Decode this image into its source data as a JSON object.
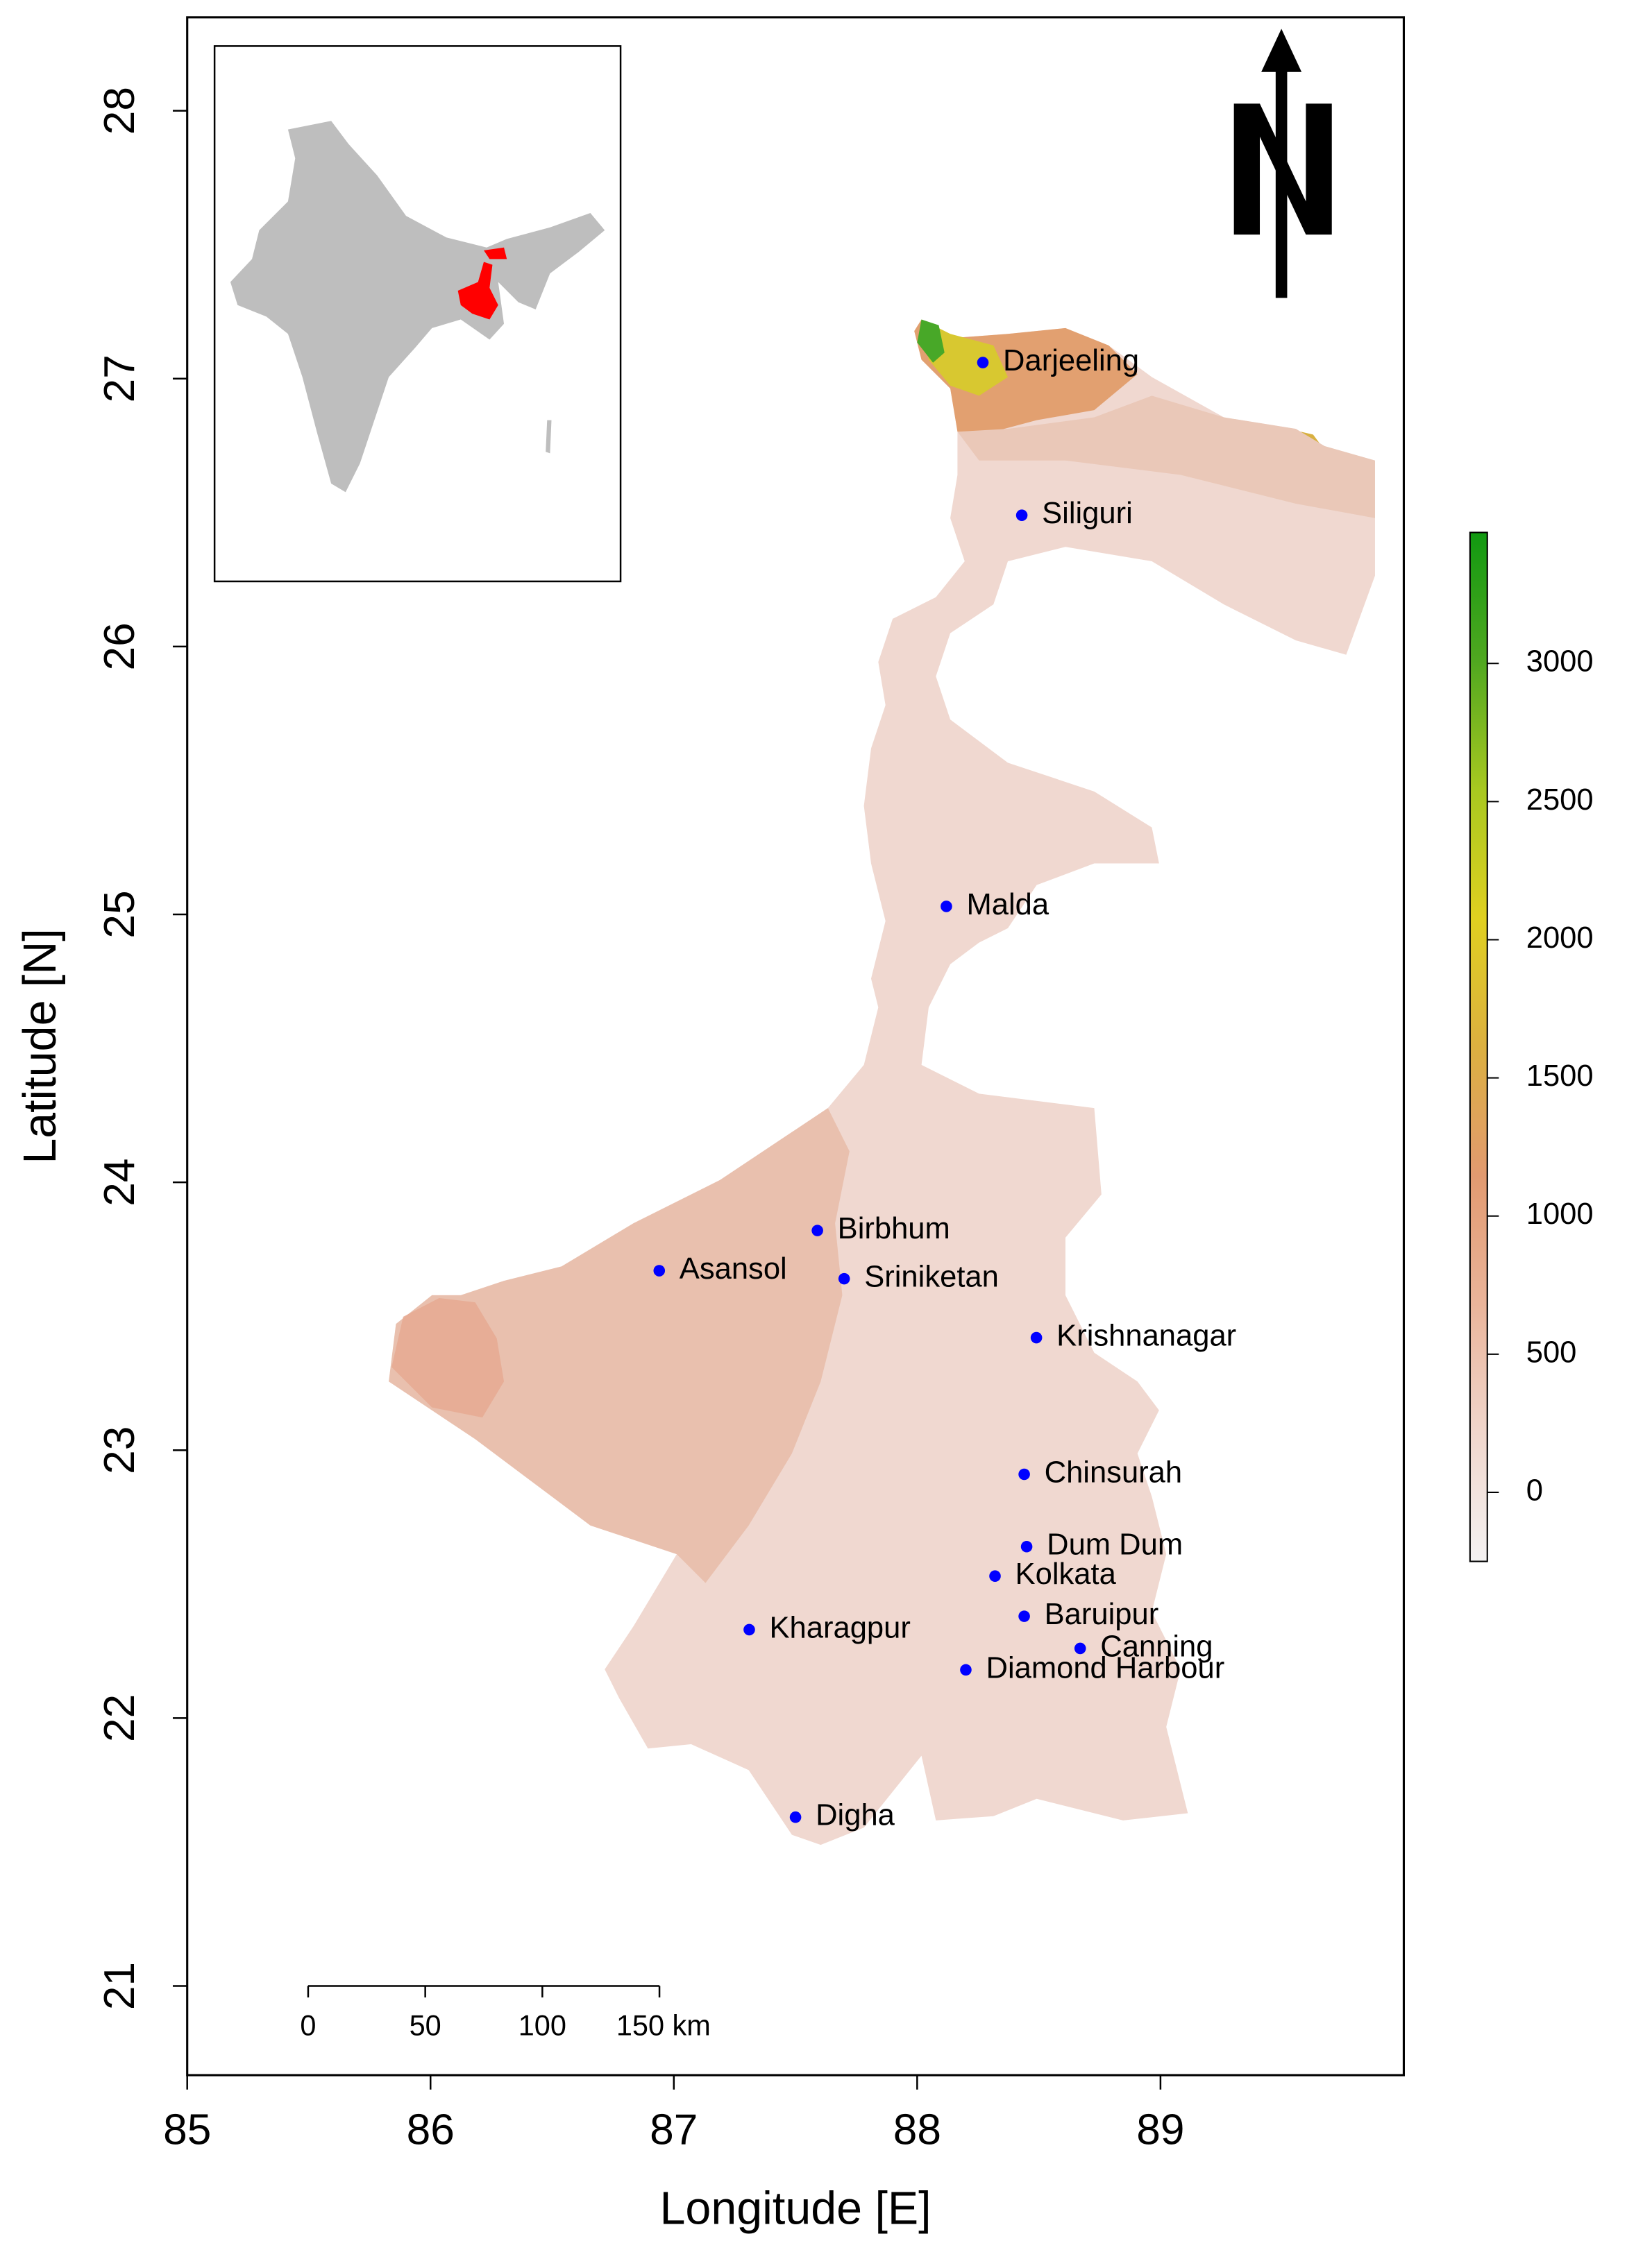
{
  "chart_data": {
    "type": "map",
    "xlabel": "Longitude [E]",
    "ylabel": "Latitude [N]",
    "xlim": [
      85,
      90
    ],
    "ylim": [
      20.667,
      28.349
    ],
    "xticks": [
      85,
      86,
      87,
      88,
      89
    ],
    "yticks": [
      21,
      22,
      23,
      24,
      25,
      26,
      27,
      28
    ],
    "places": {
      "names": [
        "Darjeeling",
        "Siliguri",
        "Malda",
        "Birbhum",
        "Asansol",
        "Sriniketan",
        "Krishnanagar",
        "Chinsurah",
        "Dum Dum",
        "Kolkata",
        "Baruipur",
        "Canning",
        "Diamond Harbour",
        "Kharagpur",
        "Digha"
      ],
      "x": [
        88.27,
        88.43,
        88.12,
        87.59,
        86.94,
        87.7,
        88.49,
        88.44,
        88.45,
        88.32,
        88.44,
        88.67,
        88.2,
        87.31,
        87.5
      ],
      "y": [
        27.06,
        26.49,
        25.03,
        23.82,
        23.67,
        23.64,
        23.42,
        22.91,
        22.64,
        22.53,
        22.38,
        22.26,
        22.18,
        22.33,
        21.63
      ]
    },
    "point_color": "#0000ff",
    "colorbar": {
      "lim": [
        -250,
        3474
      ],
      "ticks": [
        0,
        500,
        1000,
        1500,
        2000,
        2500,
        3000
      ],
      "colors": [
        "#f4f2f2",
        "#f0d6cc",
        "#eab49a",
        "#e29a70",
        "#dcb040",
        "#e0d020",
        "#a8c820",
        "#50a820",
        "#119911"
      ]
    },
    "scale_bar": {
      "ticks": [
        0,
        50,
        100,
        {
          "value": 150,
          "label": "150 km"
        }
      ]
    }
  }
}
